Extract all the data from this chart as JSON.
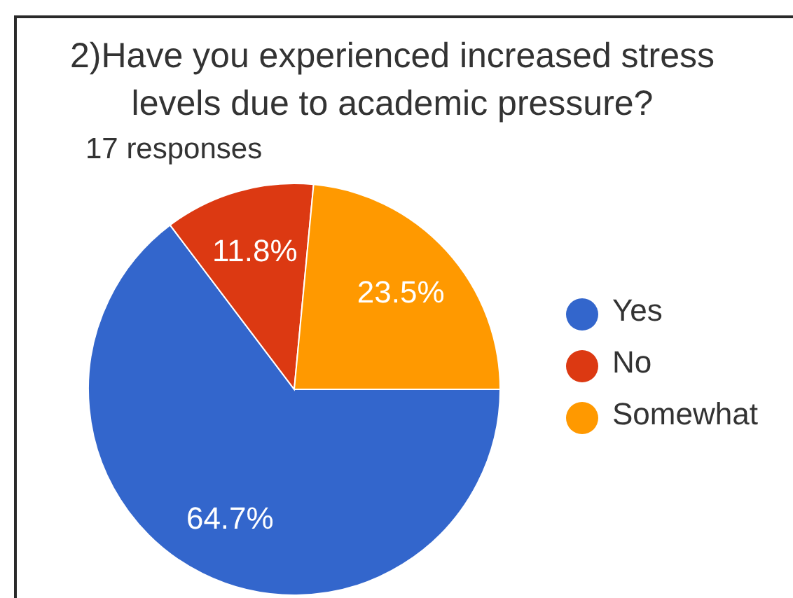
{
  "chart_data": {
    "type": "pie",
    "title": "2)Have you experienced increased stress levels due to academic pressure?",
    "subtitle": "17 responses",
    "categories": [
      "Yes",
      "No",
      "Somewhat"
    ],
    "values": [
      64.7,
      11.8,
      23.5
    ],
    "colors": [
      "#3366cc",
      "#dc3912",
      "#ff9900"
    ],
    "value_labels": [
      "64.7%",
      "11.8%",
      "23.5%"
    ],
    "legend": "right"
  }
}
